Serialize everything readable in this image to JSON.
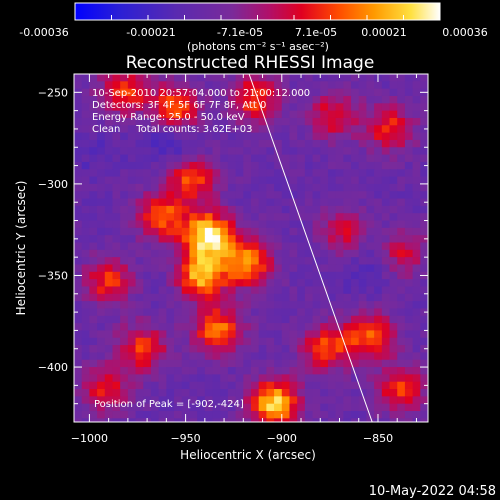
{
  "chart_data": {
    "type": "heatmap",
    "title": "Reconstructed RHESSI Image",
    "xlabel": "Heliocentric X (arcsec)",
    "ylabel": "Heliocentric Y (arcsec)",
    "xlim": [
      -1008,
      -824
    ],
    "ylim": [
      -430,
      -240
    ],
    "x_ticks": [
      -1000,
      -950,
      -900,
      -850
    ],
    "y_ticks": [
      -250,
      -300,
      -350,
      -400
    ],
    "annotations": [
      "10-Sep-2010 20:57:04.000 to 21:00:12.000",
      "Detectors: 3F 4F 5F 6F 7F 8F, Att 0",
      "Energy Range: 25.0 - 50.0 keV",
      "Clean     Total counts: 3.62E+03"
    ],
    "peak_label": "Position of Peak = [-902,-424]",
    "peak": [
      -902,
      -424
    ],
    "limb_line": [
      [
        -917,
        -240
      ],
      [
        -853,
        -430
      ]
    ],
    "colorbar": {
      "ticks": [
        "-0.00036",
        "-0.00021",
        "-7.1e-05",
        "7.1e-05",
        "0.00021",
        "0.00036"
      ],
      "unit_text": "(photons cm⁻² s⁻¹ asec⁻²)",
      "min": -0.00036,
      "max": 0.00036
    },
    "hot_regions": [
      {
        "x": -938,
        "y": -328,
        "value": 0.00033
      },
      {
        "x": -942,
        "y": -350,
        "value": 0.00026
      },
      {
        "x": -918,
        "y": -343,
        "value": 0.00022
      },
      {
        "x": -904,
        "y": -420,
        "value": 0.0003
      },
      {
        "x": -933,
        "y": -380,
        "value": 0.0002
      },
      {
        "x": -963,
        "y": -318,
        "value": 0.00018
      },
      {
        "x": -947,
        "y": -297,
        "value": 0.00016
      },
      {
        "x": -955,
        "y": -258,
        "value": 0.00017
      },
      {
        "x": -914,
        "y": -253,
        "value": 0.00015
      },
      {
        "x": -982,
        "y": -250,
        "value": 0.00014
      },
      {
        "x": -873,
        "y": -263,
        "value": 0.0001
      },
      {
        "x": -844,
        "y": -270,
        "value": 0.00012
      },
      {
        "x": -854,
        "y": -383,
        "value": 0.00017
      },
      {
        "x": -838,
        "y": -412,
        "value": 0.00014
      },
      {
        "x": -877,
        "y": -390,
        "value": 0.00015
      },
      {
        "x": -990,
        "y": -353,
        "value": 0.00013
      },
      {
        "x": -972,
        "y": -390,
        "value": 0.00013
      },
      {
        "x": -992,
        "y": -412,
        "value": 0.0001
      },
      {
        "x": -868,
        "y": -325,
        "value": 8e-05
      },
      {
        "x": -838,
        "y": -337,
        "value": 0.00011
      }
    ],
    "cold_regions": [
      {
        "x": -955,
        "y": -280,
        "value": -0.0002
      },
      {
        "x": -968,
        "y": -278,
        "value": -0.00014
      },
      {
        "x": -996,
        "y": -285,
        "value": -0.00016
      },
      {
        "x": -845,
        "y": -335,
        "value": -0.00018
      },
      {
        "x": -878,
        "y": -317,
        "value": -0.00012
      },
      {
        "x": -857,
        "y": -350,
        "value": -0.00016
      },
      {
        "x": -980,
        "y": -325,
        "value": -0.00012
      },
      {
        "x": -962,
        "y": -357,
        "value": -0.00013
      },
      {
        "x": -935,
        "y": -413,
        "value": -0.00012
      },
      {
        "x": -915,
        "y": -288,
        "value": -0.00011
      },
      {
        "x": -898,
        "y": -278,
        "value": -0.0001
      },
      {
        "x": -985,
        "y": -380,
        "value": -0.0001
      }
    ]
  },
  "footer": {
    "timestamp": "10-May-2022 04:58"
  }
}
